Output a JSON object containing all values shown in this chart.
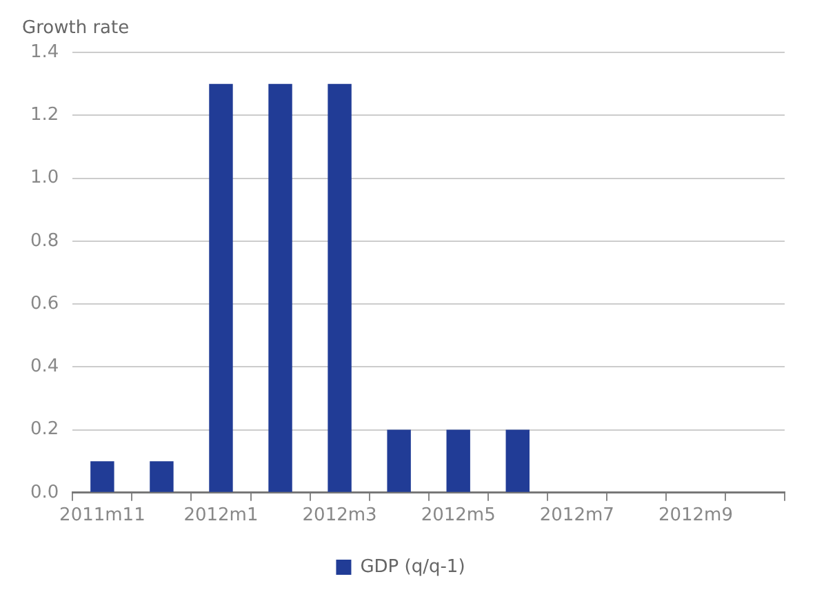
{
  "chart_data": {
    "type": "bar",
    "ylabel": "Growth rate",
    "categories": [
      "2011m11",
      null,
      "2012m1",
      null,
      "2012m3",
      null,
      "2012m5",
      null,
      "2012m7",
      null,
      "2012m9",
      null
    ],
    "series": [
      {
        "name": "GDP (q/q-1)",
        "color": "#213c96",
        "values": [
          0.1,
          0.1,
          1.3,
          1.3,
          1.3,
          0.2,
          0.2,
          0.2,
          null,
          null,
          null,
          null
        ]
      }
    ],
    "ylim": [
      0,
      1.4
    ],
    "yticks": [
      {
        "value": 0,
        "label": "0.0"
      },
      {
        "value": 0.2,
        "label": "0.2"
      },
      {
        "value": 0.4,
        "label": "0.4"
      },
      {
        "value": 0.6,
        "label": "0.6"
      },
      {
        "value": 0.8,
        "label": "0.8"
      },
      {
        "value": 1,
        "label": "1.0"
      },
      {
        "value": 1.2,
        "label": "1.2"
      },
      {
        "value": 1.4,
        "label": "1.4"
      }
    ],
    "grid": "y",
    "legend": "bottom"
  }
}
